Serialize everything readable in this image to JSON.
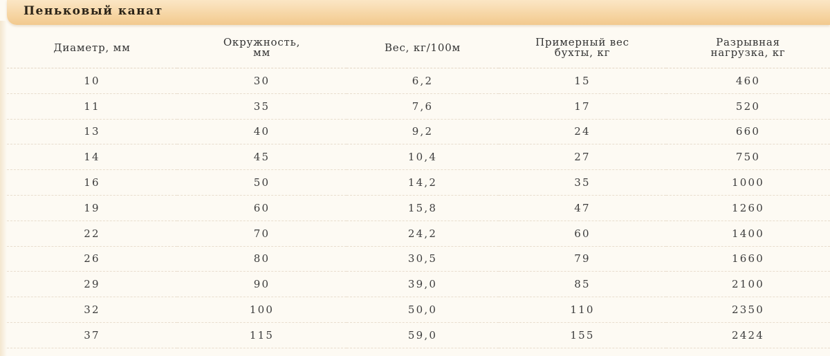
{
  "title": "Пеньковый канат",
  "table": {
    "headers": [
      [
        "Диаметр, мм"
      ],
      [
        "Окружность,",
        "мм"
      ],
      [
        "Вес, кг/100м"
      ],
      [
        "Примерный вес",
        "бухты, кг"
      ],
      [
        "Разрывная",
        "нагрузка, кг"
      ]
    ],
    "rows": [
      [
        "10",
        "30",
        "6,2",
        "15",
        "460"
      ],
      [
        "11",
        "35",
        "7,6",
        "17",
        "520"
      ],
      [
        "13",
        "40",
        "9,2",
        "24",
        "660"
      ],
      [
        "14",
        "45",
        "10,4",
        "27",
        "750"
      ],
      [
        "16",
        "50",
        "14,2",
        "35",
        "1000"
      ],
      [
        "19",
        "60",
        "15,8",
        "47",
        "1260"
      ],
      [
        "22",
        "70",
        "24,2",
        "60",
        "1400"
      ],
      [
        "26",
        "80",
        "30,5",
        "79",
        "1660"
      ],
      [
        "29",
        "90",
        "39,0",
        "85",
        "2100"
      ],
      [
        "32",
        "100",
        "50,0",
        "110",
        "2350"
      ],
      [
        "37",
        "115",
        "59,0",
        "155",
        "2424"
      ]
    ]
  }
}
